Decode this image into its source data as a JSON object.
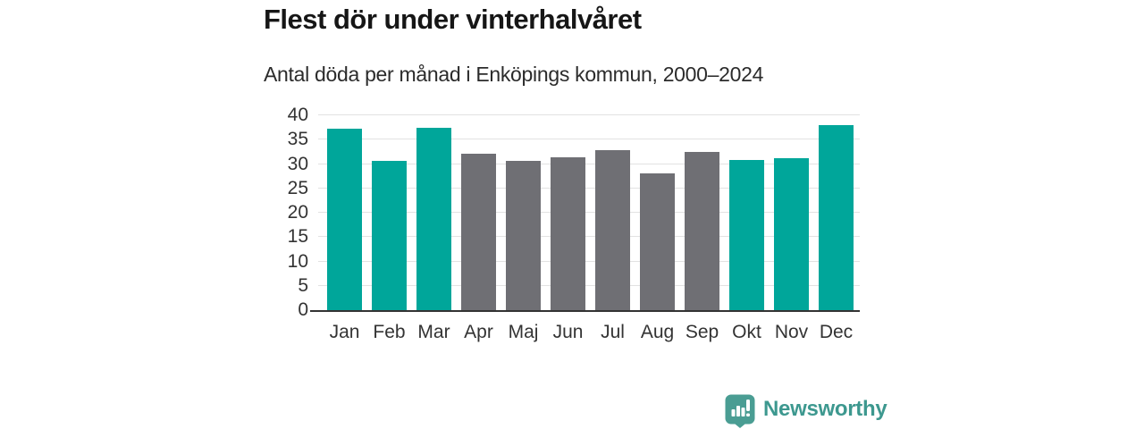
{
  "chart_data": {
    "type": "bar",
    "title": "Flest dör under vinterhalvåret",
    "subtitle": "Antal döda per månad i Enköpings kommun, 2000–2024",
    "categories": [
      "Jan",
      "Feb",
      "Mar",
      "Apr",
      "Maj",
      "Jun",
      "Jul",
      "Aug",
      "Sep",
      "Okt",
      "Nov",
      "Dec"
    ],
    "values": [
      37.2,
      30.6,
      37.4,
      32.1,
      30.6,
      31.4,
      32.9,
      28.0,
      32.5,
      30.9,
      31.2,
      37.9
    ],
    "bar_colors": [
      "#00A69A",
      "#00A69A",
      "#00A69A",
      "#6F6F74",
      "#6F6F74",
      "#6F6F74",
      "#6F6F74",
      "#6F6F74",
      "#6F6F74",
      "#00A69A",
      "#00A69A",
      "#00A69A"
    ],
    "highlight_color": "#00A69A",
    "regular_color": "#6F6F74",
    "xlabel": "",
    "ylabel": "",
    "ylim": [
      0,
      40
    ],
    "yticks": [
      0,
      5,
      10,
      15,
      20,
      25,
      30,
      35,
      40
    ],
    "grid": "horizontal",
    "legend": "none"
  },
  "branding": {
    "logo_text": "Newsworthy",
    "logo_text_color": "#3d988f",
    "logo_icon_color": "#4a9d93"
  }
}
